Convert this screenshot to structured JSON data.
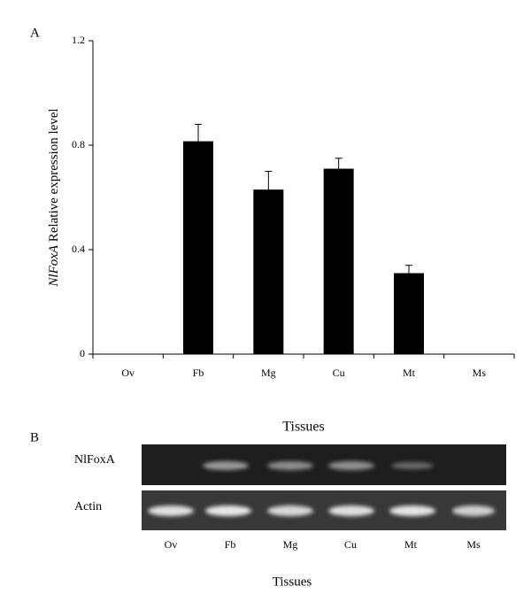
{
  "panel_a": "A",
  "chart_data": {
    "type": "bar",
    "ylabel": {
      "gene": "NlFoxA",
      "text": "Relative expression level"
    },
    "xlabel": "Tissues",
    "categories": [
      "Ov",
      "Fb",
      "Mg",
      "Cu",
      "Mt",
      "Ms"
    ],
    "values": [
      0,
      0.815,
      0.63,
      0.71,
      0.31,
      0
    ],
    "errors": [
      0,
      0.065,
      0.07,
      0.04,
      0.03,
      0
    ],
    "color": "#000000",
    "ylim": [
      0,
      1.2
    ],
    "yticks": [
      0,
      0.4,
      0.8,
      1.2
    ],
    "grid": false
  },
  "panel_b": "B",
  "gel": {
    "rows": [
      "NlFoxA",
      "Actin"
    ],
    "lanes": [
      "Ov",
      "Fb",
      "Mg",
      "Cu",
      "Mt",
      "Ms"
    ],
    "xlabel": "Tissues"
  }
}
